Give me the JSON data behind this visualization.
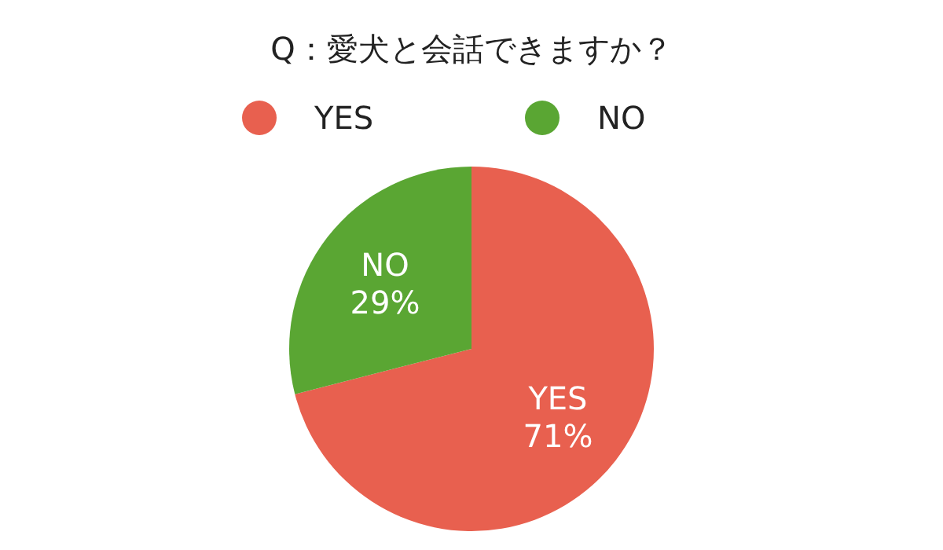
{
  "chart_data": {
    "type": "pie",
    "title": "Q：愛犬と会話できますか？",
    "categories": [
      "YES",
      "NO"
    ],
    "values": [
      71,
      29
    ],
    "colors": [
      "#e8604f",
      "#5aa633"
    ],
    "value_labels": [
      "71%",
      "29%"
    ],
    "legend": "top"
  }
}
